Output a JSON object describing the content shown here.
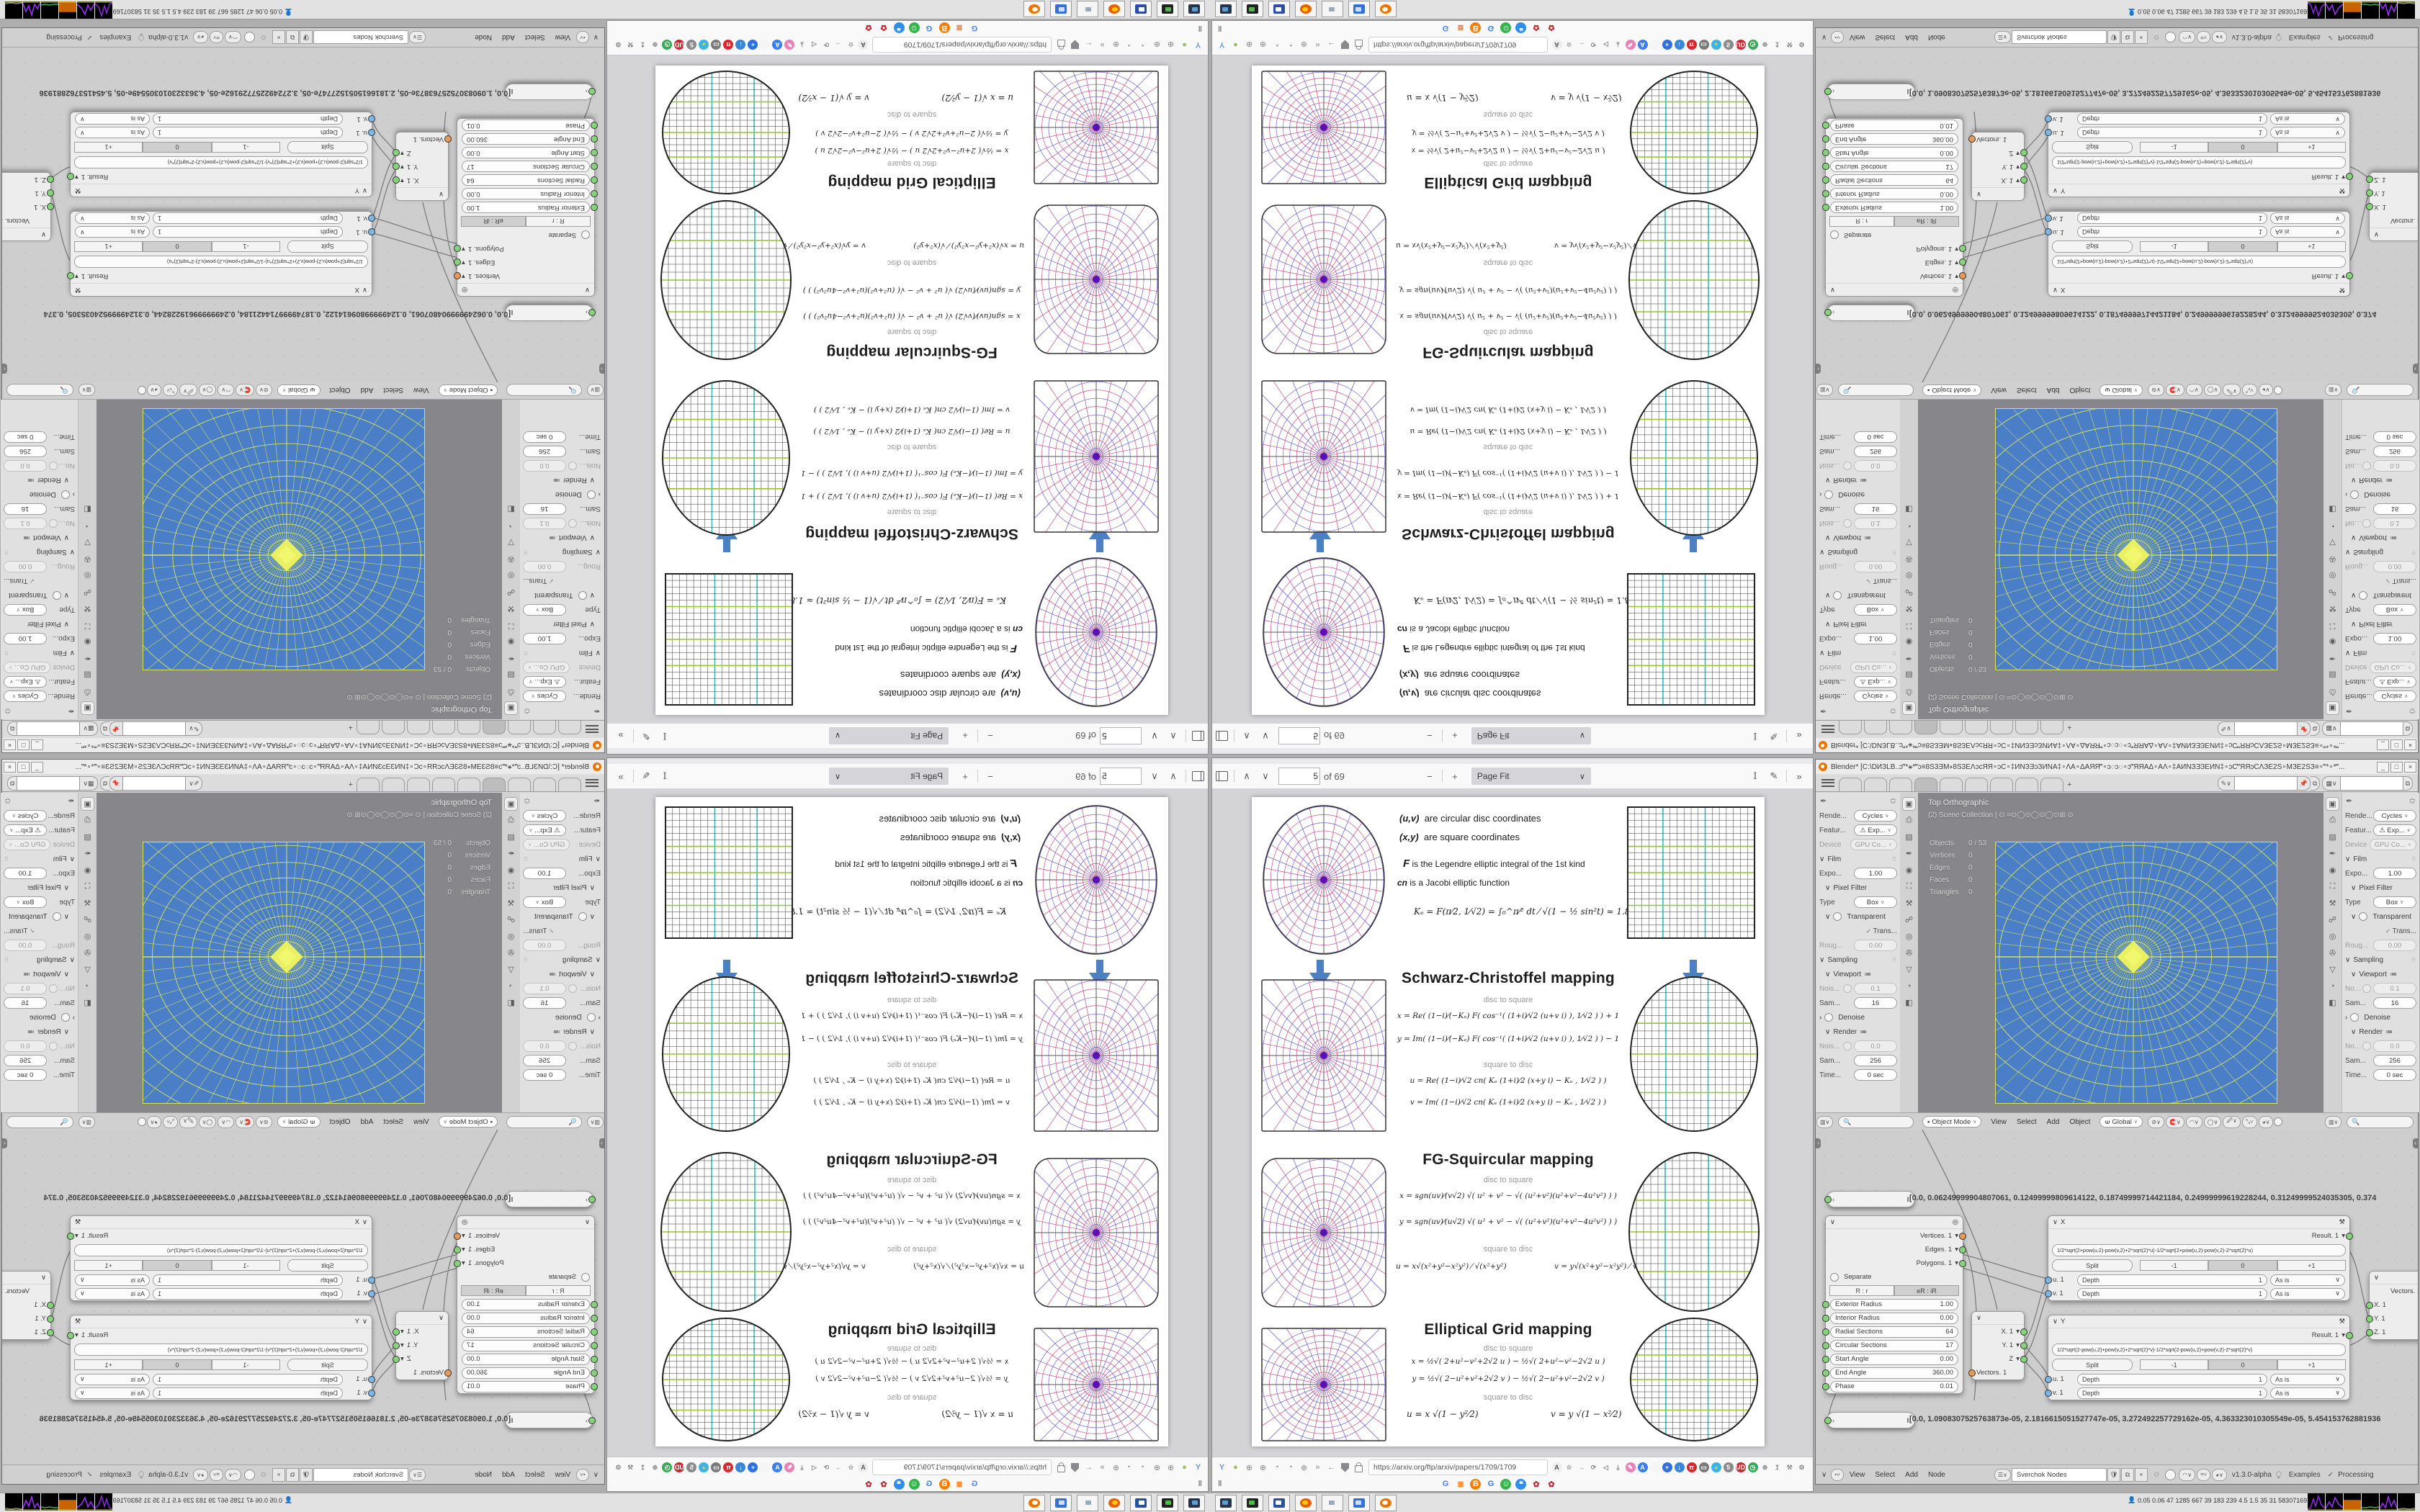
{
  "pdfjs": {
    "page": "5",
    "of": "of 69",
    "zoom": "Page Fit"
  },
  "firefox": {
    "url": "https://arxiv.org/ftp/arxiv/papers/1709/1709"
  },
  "pdf": {
    "intro": {
      "l1k": "(u,v)",
      "l1": "are circular disc coordinates",
      "l2k": "(x,y)",
      "l2": "are square coordinates",
      "l3k": "F",
      "l3": "is the Legendre elliptic integral of the 1st kind",
      "l4k": "cn",
      "l4": "is a Jacobi elliptic function",
      "ke": "Kₑ = F(π⁄2, 1⁄√2) = ∫₀^π⁄² dt ⁄ √(1 − ½ sin²t)  ≈ 1.854"
    },
    "sc": {
      "title": "Schwarz-Christoffel mapping",
      "s1": "disc to square",
      "f1": "x = Re( (1−i)⁄(−Kₑ) F( cos⁻¹( (1+i)⁄√2 (u+v i) ), 1⁄√2 ) ) + 1",
      "f2": "y = Im( (1−i)⁄(−Kₑ) F( cos⁻¹( (1+i)⁄√2 (u+v i) ), 1⁄√2 ) ) − 1",
      "s2": "square to disc",
      "f3": "u = Re( (1−i)⁄√2 cn( Kₑ (1+i)⁄2 (x+y i) − Kₑ , 1⁄√2 ) )",
      "f4": "v = Im( (1−i)⁄√2 cn( Kₑ (1+i)⁄2 (x+y i) − Kₑ , 1⁄√2 ) )"
    },
    "fg": {
      "title": "FG-Squircular mapping",
      "s1": "disc to square",
      "f1": "x = sgn(uv)⁄(v√2) √( u² + v² − √( (u²+v²)(u²+v²−4u²v²) ) )",
      "f2": "y = sgn(uv)⁄(u√2) √( u² + v² − √( (u²+v²)(u²+v²−4u²v²) ) )",
      "s2": "square to disc",
      "f3": "u = x√(x²+y²−x²y²) ⁄ √(x²+y²)",
      "f4": "v = y√(x²+y²−x²y²) ⁄ √(x²+y²)"
    },
    "eg": {
      "title": "Elliptical Grid mapping",
      "s1": "disc to square",
      "f1": "x = ½√( 2+u²−v²+2√2 u ) − ½√( 2+u²−v²−2√2 u )",
      "f2": "y = ½√( 2−u²+v²+2√2 v ) − ½√( 2−u²+v²−2√2 v )",
      "s2": "square to disc",
      "f3": "u = x √(1 − y²⁄2)",
      "f4": "v = y √(1 − x²⁄2)"
    }
  },
  "blender": {
    "title": "Blender* [C:\\DИЗLB..ɔ‴*⚹*‴ɔ≡8S3ƎM∘8S3EΛɔcЯЯ∘ɔC∘‡ИNЗƎɔЗИNA‡∘ΛA∘ΔAЯЯ‴∘ɔ◌ɔ◌∘ɔ‴ЯЯAΔ∘AΛ∘‡AИNЗƎЗEИN‡∘ɔC‴ЯЯɔCΛЗE2S∘MЗE2SЗ≡∘‴*∘*‴...",
    "win_buttons": [
      "_",
      "□",
      "×"
    ],
    "props_rows": [
      {
        "t": "select",
        "label": "Rende...",
        "value": "Cycles"
      },
      {
        "t": "select",
        "label": "Featur...",
        "value": "⚠ Exp..."
      },
      {
        "t": "select",
        "label": "Device",
        "value": "GPU Co...",
        "dim": true
      },
      {
        "t": "header",
        "label": "Film",
        "grip": true
      },
      {
        "t": "value",
        "label": "Expo...",
        "value": "1.00"
      },
      {
        "t": "subheader",
        "label": "Pixel Filter"
      },
      {
        "t": "select",
        "label": "Type",
        "value": "Box"
      },
      {
        "t": "checksub",
        "label": "Transparent"
      },
      {
        "t": "checkdim",
        "label": "Trans..."
      },
      {
        "t": "value",
        "label": "Roug...",
        "value": "0.00",
        "dim": true
      },
      {
        "t": "header",
        "label": "Sampling",
        "grip": true
      },
      {
        "t": "subheader",
        "label": "Viewport",
        "list": true
      },
      {
        "t": "circle",
        "label": "Nois...",
        "value": "0.1",
        "dim": true
      },
      {
        "t": "value",
        "label": "Sam...",
        "value": "16"
      },
      {
        "t": "collapsed",
        "label": "Denoise"
      },
      {
        "t": "subheader",
        "label": "Render",
        "list": true
      },
      {
        "t": "circle",
        "label": "Nois...",
        "value": "0.0",
        "dim": true
      },
      {
        "t": "value",
        "label": "Sam...",
        "value": "256"
      },
      {
        "t": "value",
        "label": "Time...",
        "value": "0 sec"
      }
    ],
    "prop_tab_icons": [
      "▣",
      "⎙",
      "▤",
      "✒",
      "◉",
      "⛶",
      "⚒",
      "☍",
      "◎",
      "✇",
      "▽",
      "◔",
      "◧"
    ],
    "viewport": {
      "overlay1": "Top Orthographic",
      "overlay2": "(2) Scene Collection | ⊙ ⌗⊙◯⊙◯⊙◯⊙⊞ ⊙",
      "stats": [
        [
          "Objects",
          "0 / 53"
        ],
        [
          "Vertices",
          "0"
        ],
        [
          "Edges",
          "0"
        ],
        [
          "Faces",
          "0"
        ],
        [
          "Triangles",
          "0"
        ]
      ],
      "mode": "Object Mode",
      "menus": [
        "View",
        "Select",
        "Add",
        "Object"
      ],
      "orient": "Global"
    },
    "node": {
      "string1": "[0.0, 0.06249999904807061, 0.12499999809614122, 0.18749999714421184, 0.24999999619228244, 0.31249999524035305, 0.374",
      "string2": "[0.0, 1.0908307525763873e-05, 2.1816615051527747e-05, 3.272492257729162e-05, 4.363323010305549e-05, 5.454153762881936",
      "ring": {
        "outputs": [
          "Vertices. 1",
          "Edges. 1",
          "Polygons. 1"
        ],
        "separate": "Separate",
        "seg": [
          "R : r",
          "eR : iR"
        ],
        "params": [
          [
            "Exterior Radius",
            "1.00"
          ],
          [
            "Interior Radius",
            "0.00"
          ],
          [
            "Radial Sections",
            "64"
          ],
          [
            "Circular Sections",
            "17"
          ],
          [
            "Start Angle",
            "0.00"
          ],
          [
            "End Angle",
            "360.00"
          ],
          [
            "Phase",
            "0.01"
          ]
        ]
      },
      "vx": {
        "title": "X",
        "formula": "1/2*sqrt(2+pow(u,2)-pow(v,2)+2*sqrt(2)*u)-1/2*sqrt(2+pow(u,2)-pow(v,2)-2*sqrt(2)*u)"
      },
      "vy": {
        "title": "Y",
        "formula": "1/2*sqrt(2-pow(u,2)+pow(v,2)+2*sqrt(2)*v)-1/2*sqrt(2-pow(u,2)+pow(v,2)-2*sqrt(2)*v)"
      },
      "fnode": {
        "result": "Result. 1",
        "split": "Split",
        "m1": "-1",
        "z": "0",
        "p1": "+1",
        "u": "u. 1",
        "v": "v. 1",
        "depth": "Depth",
        "depthval": "1",
        "asis": "As is"
      },
      "vout": {
        "x": "X. 1",
        "y": "Y. 1",
        "z": "Z",
        "vec": "Vectors. 1"
      },
      "vin": {
        "vec": "Vectors. 1",
        "x": "X. 1",
        "y": "Y. 1",
        "z": "Z. 1"
      },
      "footer": {
        "menus": [
          "View",
          "Select",
          "Add",
          "Node"
        ],
        "tree": "Sverchok Nodes",
        "version": "v1.3.0-alpha",
        "examples": "Examples",
        "processing": "Processing"
      }
    }
  },
  "taskbar": {
    "monitor": "0.05 0.06  47  1285 667  39  183  239  4.5  1.5  35  31  58307169",
    "app_icons": [
      "display",
      "capture",
      "floppy",
      "firefox",
      "notepad",
      "media",
      "blender"
    ]
  },
  "icons": {
    "url_left": [
      {
        "n": "y-logo-icon",
        "g": "Y",
        "fg": "#2b6fe0"
      },
      {
        "n": "green-app-icon",
        "g": "●",
        "fg": "#9fc05a"
      },
      {
        "n": "globe1-icon",
        "g": "⊕",
        "fg": "#8a8a8e"
      },
      {
        "n": "globe2-icon",
        "g": "⊕",
        "fg": "#8a8a8e"
      },
      {
        "n": "gauge1-icon",
        "g": "◔",
        "fg": "#8a8a8e"
      },
      {
        "n": "gauge2-icon",
        "g": "◔",
        "fg": "#8a8a8e"
      },
      {
        "n": "globe3-icon",
        "g": "⊕",
        "fg": "#8a8a8e"
      },
      {
        "n": "overflow-chevrons-icon",
        "g": "»",
        "fg": "#8a8a8e"
      },
      {
        "n": "back-icon",
        "g": "←",
        "fg": "#8a8a8e"
      }
    ],
    "url_right": [
      {
        "n": "translate-icon",
        "g": "A",
        "bg": "#ededed",
        "fg": "#555"
      },
      {
        "n": "star-icon",
        "g": "☆",
        "fg": "#888"
      },
      {
        "n": "forward-icon",
        "g": "→",
        "fg": "#888"
      },
      {
        "n": "reload-icon",
        "g": "⟳",
        "fg": "#888"
      },
      {
        "n": "sound-icon",
        "g": "◁",
        "fg": "#888"
      },
      {
        "n": "download-icon",
        "g": "⤓",
        "fg": "#888"
      },
      {
        "n": "brush-icon",
        "g": "✎",
        "bg": "#e981b6",
        "fg": "#fff"
      },
      {
        "n": "a-circle-icon",
        "g": "A",
        "bg": "#3b7de9",
        "fg": "#fff"
      },
      {
        "n": "oval-icon",
        "g": "",
        "bg": "#f5f5f5"
      },
      {
        "n": "plus-circle-icon",
        "g": "+",
        "bg": "#2f6fe0",
        "fg": "#fff"
      },
      {
        "n": "down-circle-icon",
        "g": "↓",
        "bg": "#3a86d8",
        "fg": "#fff"
      },
      {
        "n": "tt-circle-icon",
        "g": "π",
        "bg": "#d8262c",
        "fg": "#fff"
      },
      {
        "n": "trash-icon",
        "g": "▭",
        "bg": "#7a7a7a",
        "fg": "#fff"
      },
      {
        "n": "globe-color-icon",
        "g": "◕",
        "bg": "#3bb3e8",
        "fg": "#f5d623"
      },
      {
        "n": "badge5-icon",
        "g": "5",
        "bg": "#8a8a8a",
        "fg": "#fff"
      },
      {
        "n": "ud-shield-icon",
        "g": "UD",
        "bg": "#c6262e",
        "fg": "#fff"
      },
      {
        "n": "clock-icon",
        "g": "◷",
        "bg": "#3aa757",
        "fg": "#fff"
      },
      {
        "n": "globe-gray-icon",
        "g": "⊕",
        "fg": "#888"
      },
      {
        "n": "share-icon",
        "g": "↥",
        "fg": "#888"
      },
      {
        "n": "wrench-icon",
        "g": "⚒",
        "fg": "#888"
      },
      {
        "n": "gear-icon",
        "g": "⚙",
        "fg": "#888"
      }
    ],
    "bookmarks": [
      {
        "n": "google-icon",
        "g": "G",
        "fg": "#4285F4"
      },
      {
        "n": "stackoverflow-icon",
        "g": "≣",
        "fg": "#f48024"
      },
      {
        "n": "blogger-icon",
        "g": "B",
        "bg": "#f57d00",
        "fg": "#fff"
      },
      {
        "n": "google-g-icon",
        "g": "G",
        "fg": "#2b7de9"
      },
      {
        "n": "smiley-icon",
        "g": "☺",
        "bg": "#35b44a",
        "fg": "#fff"
      },
      {
        "n": "chat-icon",
        "g": "❝",
        "bg": "#2f8fe8",
        "fg": "#fff"
      },
      {
        "n": "gear-red-icon",
        "g": "✿",
        "fg": "#c0272d"
      },
      {
        "n": "gear-red2-icon",
        "g": "✿",
        "fg": "#c0272d"
      }
    ]
  },
  "colors": {
    "viewport_blue": "#4a7ec6",
    "grid_yellow": "#d7e45e",
    "crimson": "#c8447c",
    "indigo": "#6055cc",
    "purple": "#5a0fb4",
    "cyan": "#35bdbd",
    "green": "#96c52e"
  }
}
